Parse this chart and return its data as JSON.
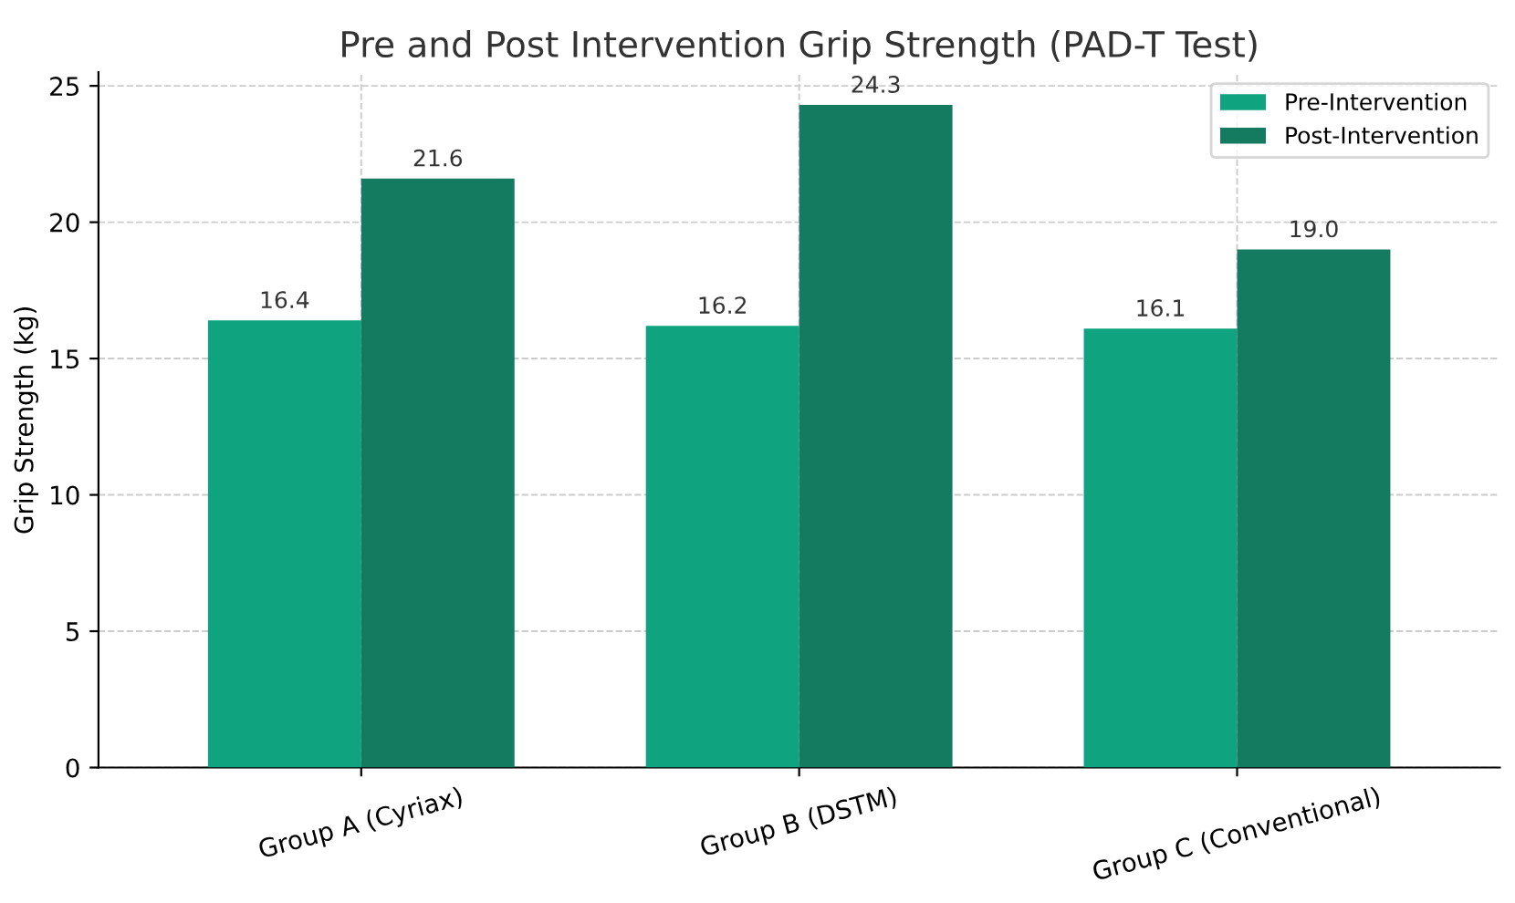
{
  "chart_data": {
    "type": "bar",
    "title": "Pre and Post Intervention Grip Strength (PAD-T Test)",
    "ylabel": "Grip Strength (kg)",
    "categories": [
      "Group A (Cyriax)",
      "Group B (DSTM)",
      "Group C (Conventional)"
    ],
    "series": [
      {
        "name": "Pre-Intervention",
        "color": "#10a37f",
        "values": [
          16.4,
          16.2,
          16.1
        ],
        "value_labels": [
          "16.4",
          "16.2",
          "16.1"
        ]
      },
      {
        "name": "Post-Intervention",
        "color": "#147a60",
        "values": [
          21.6,
          24.3,
          19.0
        ],
        "value_labels": [
          "21.6",
          "24.3",
          "19.0"
        ]
      }
    ],
    "ylim": [
      0,
      25.5
    ],
    "yticks": [
      0,
      5,
      10,
      15,
      20,
      25
    ],
    "grid": true,
    "legend": "top right"
  }
}
